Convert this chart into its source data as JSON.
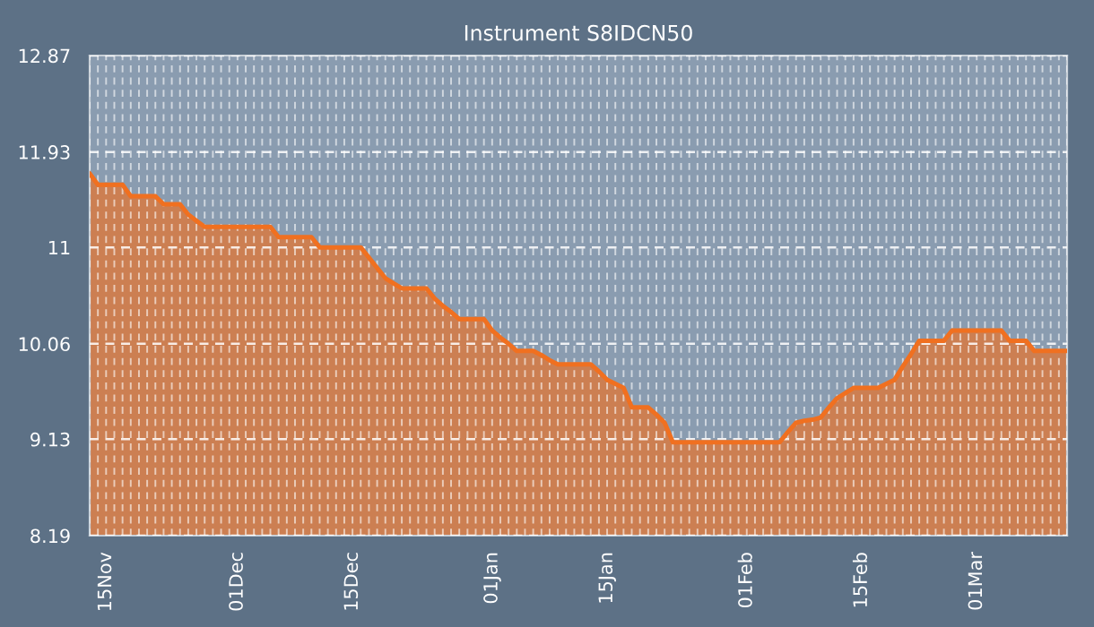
{
  "chart_data": {
    "type": "area",
    "title": "Instrument S8IDCN50",
    "categories": [
      null,
      null,
      "15Nov",
      null,
      null,
      null,
      null,
      null,
      null,
      null,
      null,
      null,
      null,
      null,
      null,
      null,
      null,
      null,
      "01Dec",
      null,
      null,
      null,
      null,
      null,
      null,
      null,
      null,
      null,
      null,
      null,
      null,
      null,
      "15Dec",
      null,
      null,
      null,
      null,
      null,
      null,
      null,
      null,
      null,
      null,
      null,
      null,
      null,
      null,
      null,
      null,
      "01Jan",
      null,
      null,
      null,
      null,
      null,
      null,
      null,
      null,
      null,
      null,
      null,
      null,
      null,
      "15Jan",
      null,
      null,
      null,
      null,
      null,
      null,
      null,
      null,
      null,
      null,
      null,
      null,
      null,
      null,
      null,
      null,
      "01Feb",
      null,
      null,
      null,
      null,
      null,
      null,
      null,
      null,
      null,
      null,
      null,
      null,
      null,
      "15Feb",
      null,
      null,
      null,
      null,
      null,
      null,
      null,
      null,
      null,
      null,
      null,
      null,
      null,
      "01Mar",
      null,
      null,
      null,
      null,
      null,
      null,
      null,
      null,
      null,
      null,
      null
    ],
    "series": [
      {
        "color": "#f07020",
        "values": [
          11.72,
          11.61,
          11.61,
          11.61,
          11.61,
          11.5,
          11.5,
          11.5,
          11.5,
          11.42,
          11.42,
          11.42,
          11.32,
          11.26,
          11.2,
          11.2,
          11.2,
          11.2,
          11.2,
          11.2,
          11.2,
          11.2,
          11.2,
          11.1,
          11.1,
          11.1,
          11.1,
          11.1,
          11.0,
          11.0,
          11.0,
          11.0,
          11.0,
          11.0,
          10.9,
          10.8,
          10.7,
          10.65,
          10.6,
          10.6,
          10.6,
          10.6,
          10.5,
          10.43,
          10.37,
          10.3,
          10.3,
          10.3,
          10.3,
          10.19,
          10.12,
          10.06,
          9.99,
          9.99,
          9.99,
          9.95,
          9.9,
          9.86,
          9.86,
          9.86,
          9.86,
          9.86,
          9.79,
          9.71,
          9.67,
          9.63,
          9.44,
          9.44,
          9.44,
          9.37,
          9.29,
          9.1,
          9.1,
          9.1,
          9.1,
          9.1,
          9.1,
          9.1,
          9.1,
          9.1,
          9.1,
          9.1,
          9.1,
          9.1,
          9.1,
          9.2,
          9.29,
          9.31,
          9.32,
          9.34,
          9.44,
          9.53,
          9.58,
          9.63,
          9.63,
          9.63,
          9.63,
          9.67,
          9.71,
          9.84,
          9.96,
          10.09,
          10.09,
          10.09,
          10.09,
          10.19,
          10.19,
          10.19,
          10.19,
          10.19,
          10.19,
          10.19,
          10.09,
          10.09,
          10.09,
          9.99,
          9.99,
          9.99,
          9.99,
          9.99
        ]
      }
    ],
    "ylim": [
      8.19,
      12.87
    ],
    "yticks": [
      8.19,
      9.13,
      10.06,
      11,
      11.93,
      12.87
    ],
    "grid": true
  }
}
